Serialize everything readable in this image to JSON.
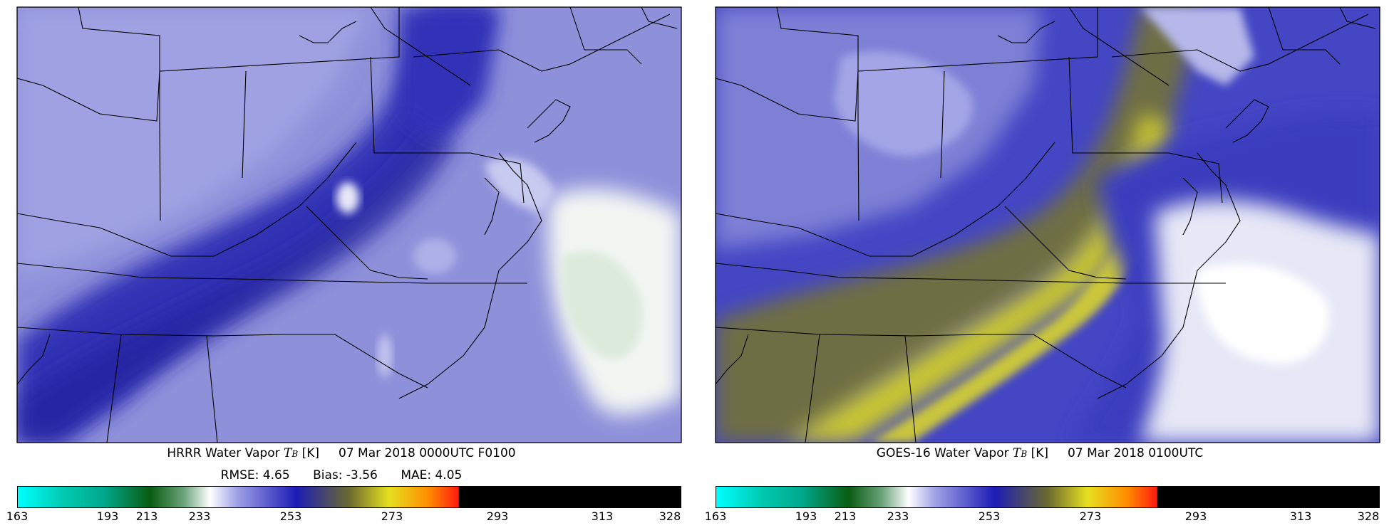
{
  "panels": [
    {
      "id": "hrrr",
      "title": {
        "prefix": "HRRR Water Vapor ",
        "symbol": "T",
        "subscript": "B",
        "unit": "[K]",
        "time": "07 Mar 2018 0000UTC F0100"
      },
      "stats": {
        "rmse_label": "RMSE: 4.65",
        "bias_label": "Bias: -3.56",
        "mae_label": "MAE: 4.05"
      },
      "colorbar": {
        "ticks": [
          "163",
          "193",
          "213",
          "233",
          "253",
          "273",
          "293",
          "313",
          "328"
        ]
      }
    },
    {
      "id": "goes16",
      "title": {
        "prefix": "GOES-16 Water Vapor ",
        "symbol": "T",
        "subscript": "B",
        "unit": "[K]",
        "time": "07 Mar 2018 0100UTC"
      },
      "colorbar": {
        "ticks": [
          "163",
          "193",
          "213",
          "233",
          "253",
          "273",
          "293",
          "313",
          "328"
        ]
      }
    }
  ],
  "colorbar_scale": {
    "min": 163,
    "max": 328,
    "tick_values": [
      163,
      193,
      213,
      233,
      253,
      273,
      293,
      313,
      328
    ],
    "colors": {
      "cyan": "#00ffff",
      "teal": "#00a88c",
      "dark_green": "#0a5c12",
      "white": "#ffffff",
      "blue": "#1c1cb6",
      "olive": "#6a6a30",
      "yellow": "#e6e020",
      "orange": "#ff8c00",
      "red": "#ff1a10",
      "black": "#000000"
    }
  },
  "map": {
    "region": "US Mid-Atlantic / Northeast",
    "field_colors": {
      "hrrr_background": "#8c8ed8",
      "hrrr_dark_band": "#2e30b6",
      "goes_background": "#4a4cc8",
      "goes_yellow_band": "#c4c230",
      "clouds": "#f4f8f6"
    }
  }
}
